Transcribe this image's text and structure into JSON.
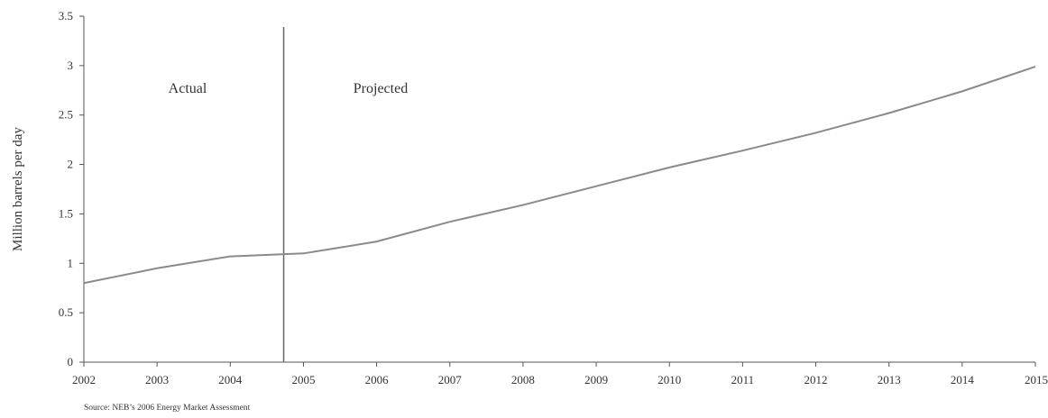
{
  "chart_data": {
    "type": "line",
    "ylabel": "Million barrels per day",
    "xlabel": "",
    "ylim": [
      0,
      3.5
    ],
    "xlim": [
      2002,
      2015
    ],
    "y_ticks": [
      "0",
      "0.5",
      "1",
      "1.5",
      "2",
      "2.5",
      "3",
      "3.5"
    ],
    "x_ticks": [
      "2002",
      "2003",
      "2004",
      "2005",
      "2006",
      "2007",
      "2008",
      "2009",
      "2010",
      "2011",
      "2012",
      "2013",
      "2014",
      "2015"
    ],
    "grid": false,
    "divider_x": 2004.73,
    "annotations": {
      "actual": "Actual",
      "projected": "Projected"
    },
    "series": [
      {
        "x": [
          2002,
          2003,
          2004,
          2005,
          2006,
          2007,
          2008,
          2009,
          2010,
          2011,
          2012,
          2013,
          2014,
          2015
        ],
        "values": [
          0.8,
          0.95,
          1.07,
          1.1,
          1.22,
          1.42,
          1.59,
          1.78,
          1.97,
          2.14,
          2.32,
          2.52,
          2.74,
          2.99
        ],
        "color": "#8a8a8a"
      }
    ],
    "source": "Source: NEB’s 2006 Energy Market Assessment"
  }
}
